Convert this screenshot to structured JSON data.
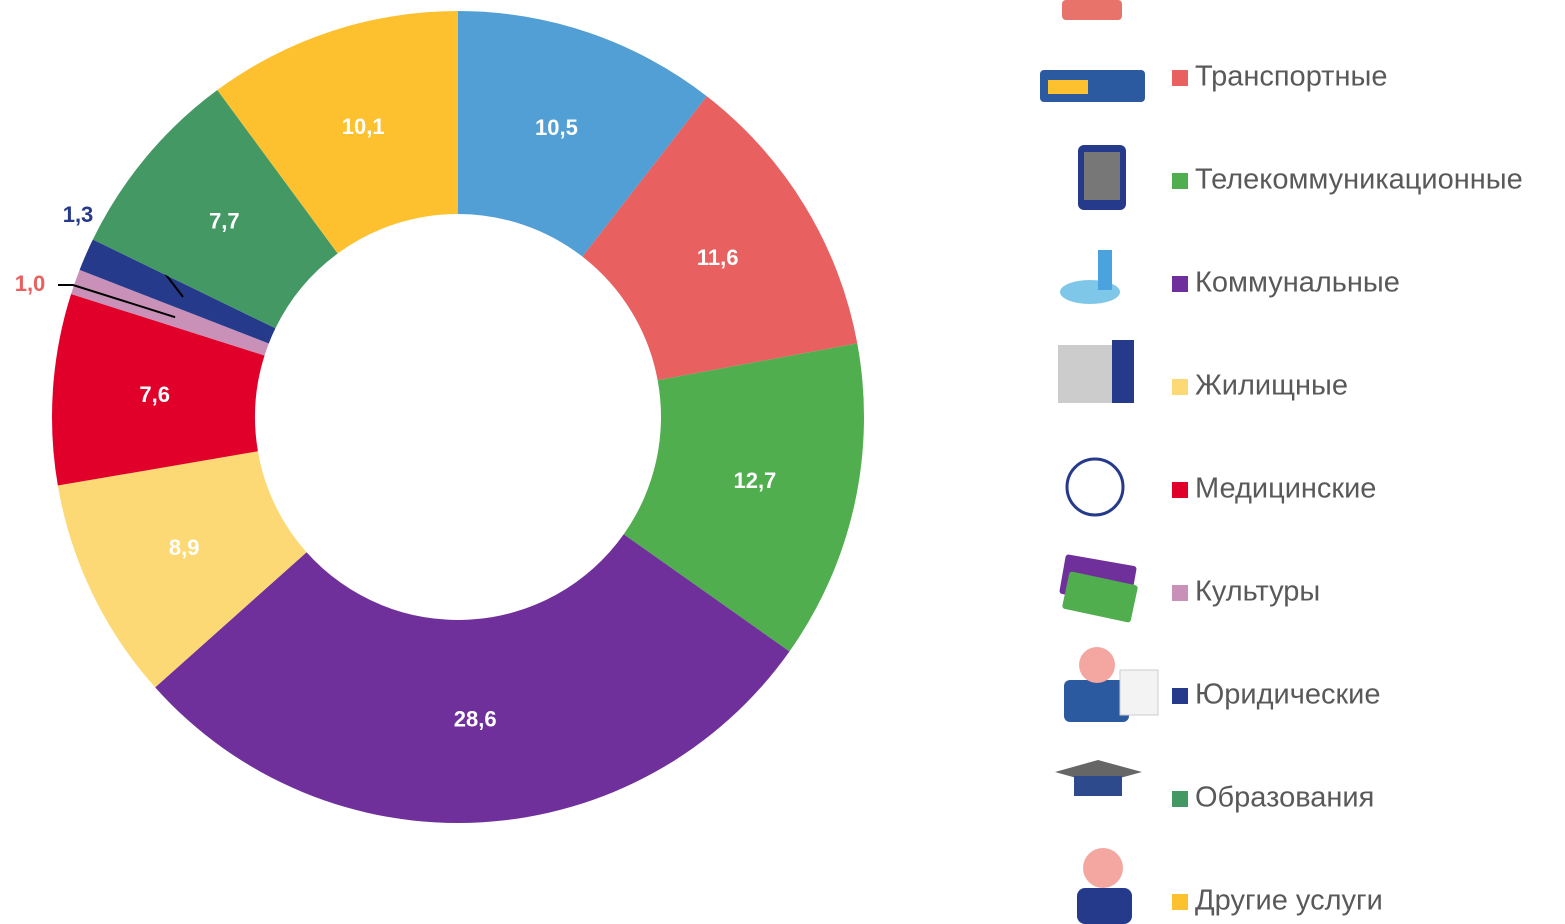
{
  "chart_data": {
    "type": "donut",
    "categories": [
      null,
      "Транспортные",
      "Телекоммуникационные",
      "Коммунальные",
      "Жилищные",
      "Медицинские",
      "Культуры",
      "Юридические",
      "Образования",
      "Другие услуги"
    ],
    "values": [
      10.5,
      11.6,
      12.7,
      28.6,
      8.9,
      7.6,
      1.0,
      1.3,
      7.7,
      10.1
    ],
    "value_labels": [
      "10,5",
      "11,6",
      "12,7",
      "28,6",
      "8,9",
      "7,6",
      "1,0",
      "1,3",
      "7,7",
      "10,1"
    ],
    "colors": [
      "#529fd6",
      "#e86060",
      "#50ae4f",
      "#70309b",
      "#fcd975",
      "#e0002a",
      "#c990b8",
      "#263a8c",
      "#439863",
      "#fdc12f"
    ]
  }
}
